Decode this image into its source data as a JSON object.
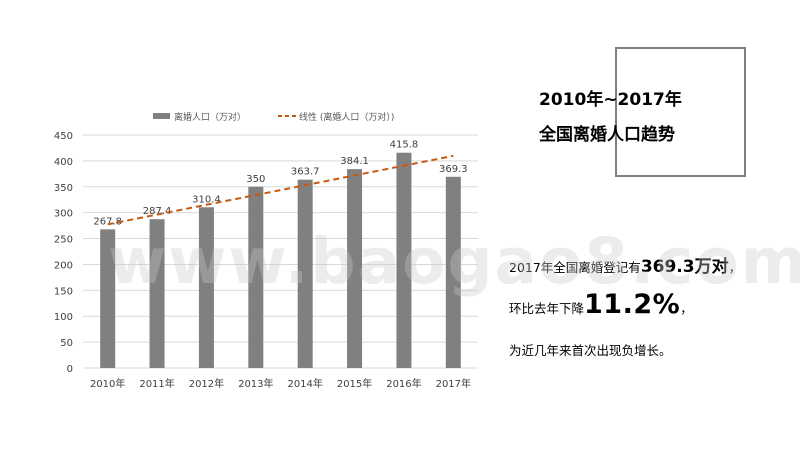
{
  "chart_data": {
    "type": "bar",
    "categories": [
      "2010年",
      "2011年",
      "2012年",
      "2013年",
      "2014年",
      "2015年",
      "2016年",
      "2017年"
    ],
    "series": [
      {
        "name": "离婚人口（万对）",
        "values": [
          267.8,
          287.4,
          310.4,
          350,
          363.7,
          384.1,
          415.8,
          369.3
        ]
      }
    ],
    "value_labels": [
      "267.8",
      "287.4",
      "310.4",
      "350",
      "363.7",
      "384.1",
      "415.8",
      "369.3"
    ],
    "trendline": {
      "name": "线性 (离婚人口（万对）)",
      "type": "linear",
      "style": "dashed"
    },
    "ylim": [
      0,
      450
    ],
    "yticks": [
      0,
      50,
      100,
      150,
      200,
      250,
      300,
      350,
      400,
      450
    ],
    "grid": true,
    "legend": "top",
    "colors": {
      "bar": "#808080",
      "trendline": "#c55a11",
      "grid": "#d9d9d9"
    }
  },
  "title": {
    "line1": "2010年~2017年",
    "line2": "全国离婚人口趋势"
  },
  "text": {
    "line1_pre": "2017年全国离婚登记有",
    "line1_value": "369.3万对",
    "line1_post": "，",
    "line2_pre": "环比去年下降",
    "line2_value": "11.2%",
    "line2_post": "，",
    "line3": "为近几年来首次出现负增长。"
  },
  "watermark": "www.baogao8.com"
}
